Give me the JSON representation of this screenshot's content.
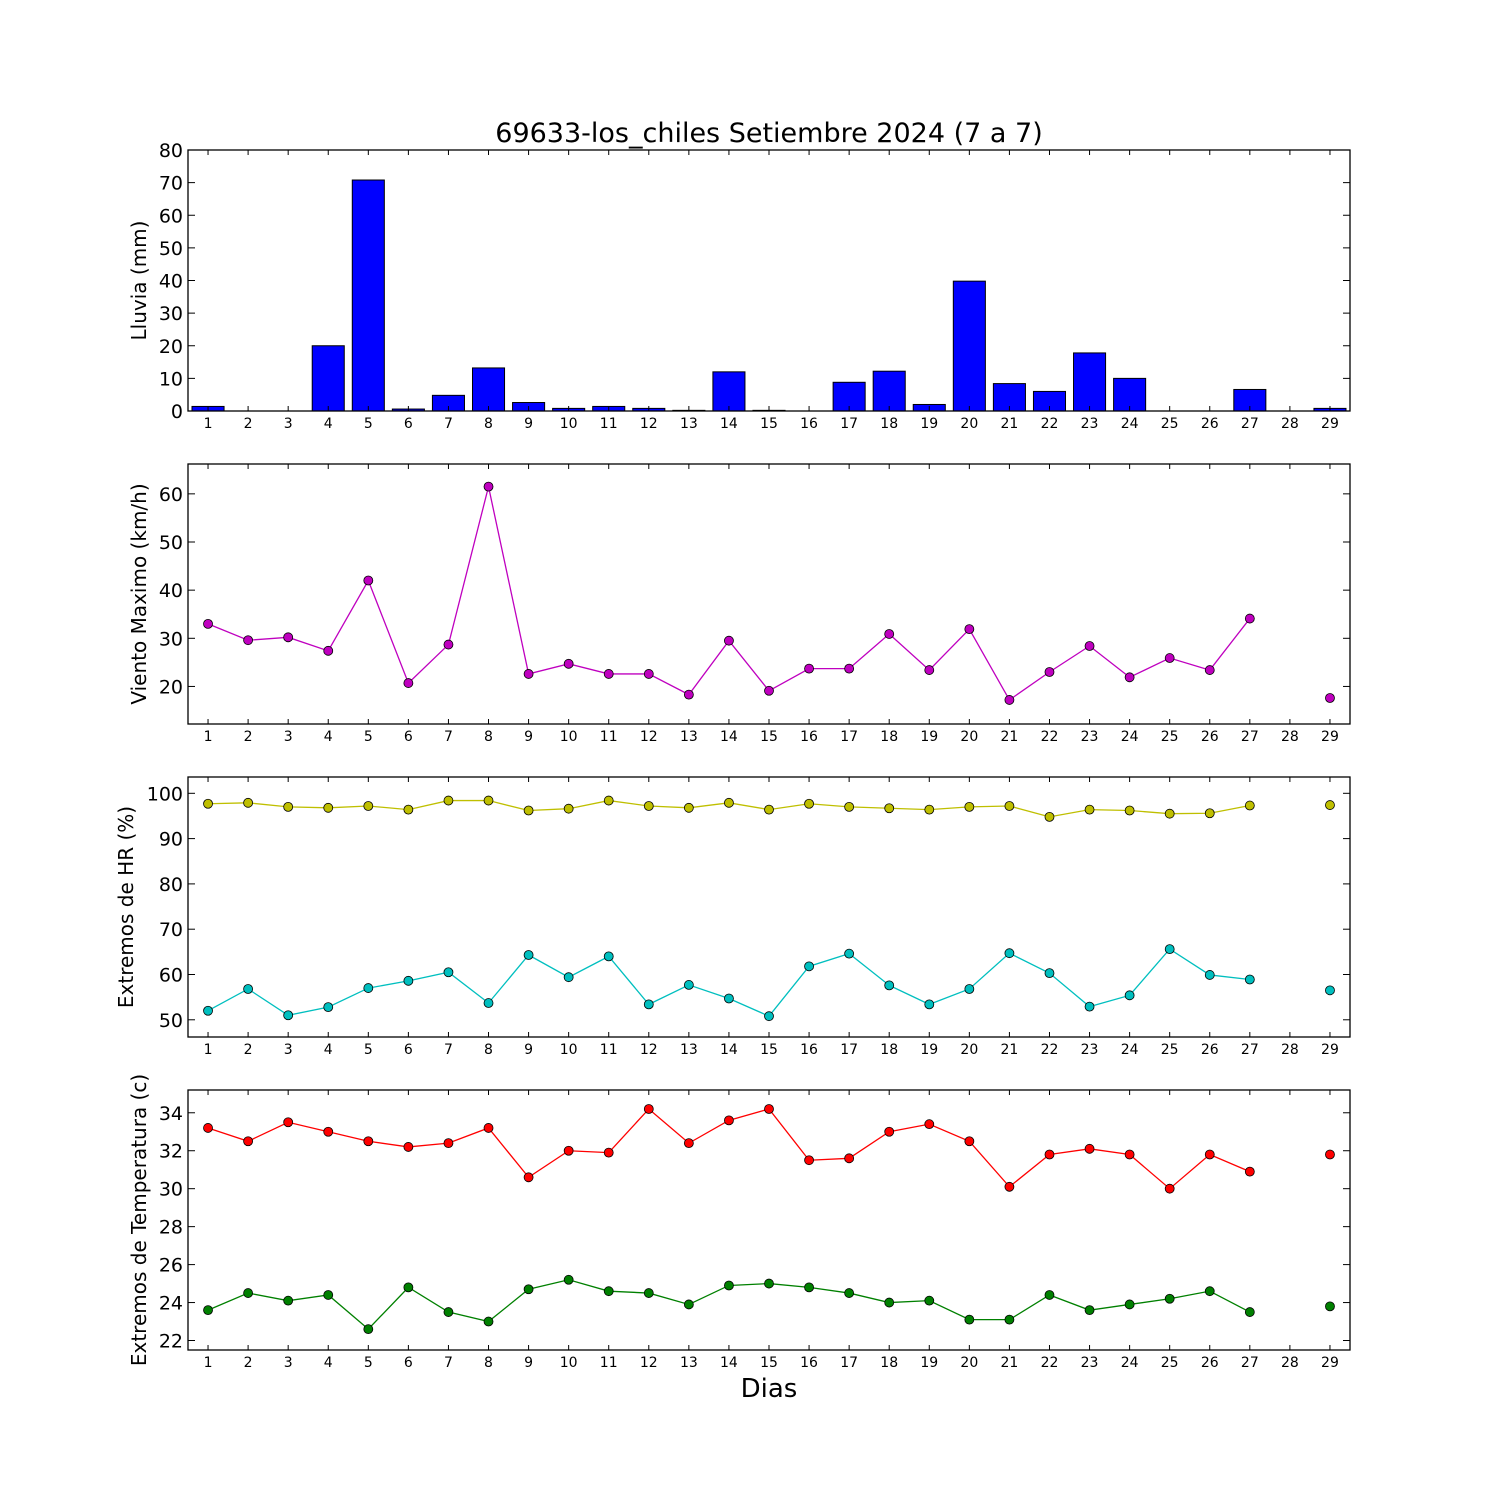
{
  "chart_data": [
    {
      "type": "bar",
      "title": "69633-los_chiles Setiembre 2024  (7 a 7)",
      "ylabel": "Lluvia (mm)",
      "xlabel": "",
      "categories": [
        1,
        2,
        3,
        4,
        5,
        6,
        7,
        8,
        9,
        10,
        11,
        12,
        13,
        14,
        15,
        16,
        17,
        18,
        19,
        20,
        21,
        22,
        23,
        24,
        25,
        26,
        27,
        28,
        29
      ],
      "series": [
        {
          "color": "#0000ff",
          "values": [
            1.4,
            0,
            0,
            20,
            70.8,
            0.6,
            4.8,
            13.2,
            2.6,
            0.8,
            1.4,
            0.8,
            0.2,
            12,
            0.2,
            0,
            8.8,
            12.2,
            2,
            39.8,
            8.4,
            6,
            17.8,
            10,
            0,
            0,
            6.6,
            null,
            0.8
          ]
        }
      ],
      "ylim": [
        0,
        80
      ],
      "yticks": [
        0,
        10,
        20,
        30,
        40,
        50,
        60,
        70,
        80
      ]
    },
    {
      "type": "line",
      "title": "",
      "ylabel": "Viento Maximo (km/h)",
      "xlabel": "",
      "categories": [
        1,
        2,
        3,
        4,
        5,
        6,
        7,
        8,
        9,
        10,
        11,
        12,
        13,
        14,
        15,
        16,
        17,
        18,
        19,
        20,
        21,
        22,
        23,
        24,
        25,
        26,
        27,
        28,
        29
      ],
      "series": [
        {
          "color": "#bf00bf",
          "values": [
            33,
            29.6,
            30.2,
            27.4,
            42,
            20.7,
            28.7,
            61.5,
            22.6,
            24.7,
            22.6,
            22.6,
            18.3,
            29.5,
            19.1,
            23.7,
            23.7,
            30.9,
            23.4,
            31.9,
            17.2,
            23,
            28.4,
            21.9,
            25.9,
            23.4,
            34.1,
            null,
            17.6
          ]
        }
      ],
      "ylim": [
        12.2,
        66.2
      ],
      "yticks": [
        20,
        30,
        40,
        50,
        60
      ]
    },
    {
      "type": "line",
      "title": "",
      "ylabel": "Extremos de HR (%)",
      "xlabel": "",
      "categories": [
        1,
        2,
        3,
        4,
        5,
        6,
        7,
        8,
        9,
        10,
        11,
        12,
        13,
        14,
        15,
        16,
        17,
        18,
        19,
        20,
        21,
        22,
        23,
        24,
        25,
        26,
        27,
        28,
        29
      ],
      "series": [
        {
          "color": "#bfbf00",
          "values": [
            97.7,
            97.9,
            97,
            96.8,
            97.2,
            96.4,
            98.4,
            98.4,
            96.2,
            96.6,
            98.4,
            97.2,
            96.8,
            97.9,
            96.4,
            97.7,
            97,
            96.7,
            96.4,
            97,
            97.2,
            94.8,
            96.4,
            96.2,
            95.5,
            95.6,
            97.3,
            null,
            97.4
          ]
        },
        {
          "color": "#00bfbf",
          "values": [
            52,
            56.8,
            51,
            52.8,
            57,
            58.6,
            60.5,
            53.7,
            64.3,
            59.4,
            64,
            53.4,
            57.7,
            54.7,
            50.8,
            61.8,
            64.6,
            57.6,
            53.4,
            56.8,
            64.7,
            60.3,
            52.9,
            55.4,
            65.6,
            59.9,
            58.9,
            null,
            56.5
          ]
        }
      ],
      "ylim": [
        46.2,
        103.6
      ],
      "yticks": [
        50,
        60,
        70,
        80,
        90,
        100
      ]
    },
    {
      "type": "line",
      "title": "",
      "ylabel": "Extremos de Temperatura (c)",
      "xlabel": "Dias",
      "categories": [
        1,
        2,
        3,
        4,
        5,
        6,
        7,
        8,
        9,
        10,
        11,
        12,
        13,
        14,
        15,
        16,
        17,
        18,
        19,
        20,
        21,
        22,
        23,
        24,
        25,
        26,
        27,
        28,
        29
      ],
      "series": [
        {
          "color": "#ff0000",
          "values": [
            33.2,
            32.5,
            33.5,
            33,
            32.5,
            32.2,
            32.4,
            33.2,
            30.6,
            32,
            31.9,
            34.2,
            32.4,
            33.6,
            34.2,
            31.5,
            31.6,
            33,
            33.4,
            32.5,
            30.1,
            31.8,
            32.1,
            31.8,
            30,
            31.8,
            30.9,
            null,
            31.8
          ]
        },
        {
          "color": "#008000",
          "values": [
            23.6,
            24.5,
            24.1,
            24.4,
            22.6,
            24.8,
            23.5,
            23,
            24.7,
            25.2,
            24.6,
            24.5,
            23.9,
            24.9,
            25,
            24.8,
            24.5,
            24,
            24.1,
            23.1,
            23.1,
            24.4,
            23.6,
            23.9,
            24.2,
            24.6,
            23.5,
            null,
            23.8
          ]
        }
      ],
      "ylim": [
        21.5,
        35.2
      ],
      "yticks": [
        22,
        24,
        26,
        28,
        30,
        32,
        34
      ]
    }
  ]
}
